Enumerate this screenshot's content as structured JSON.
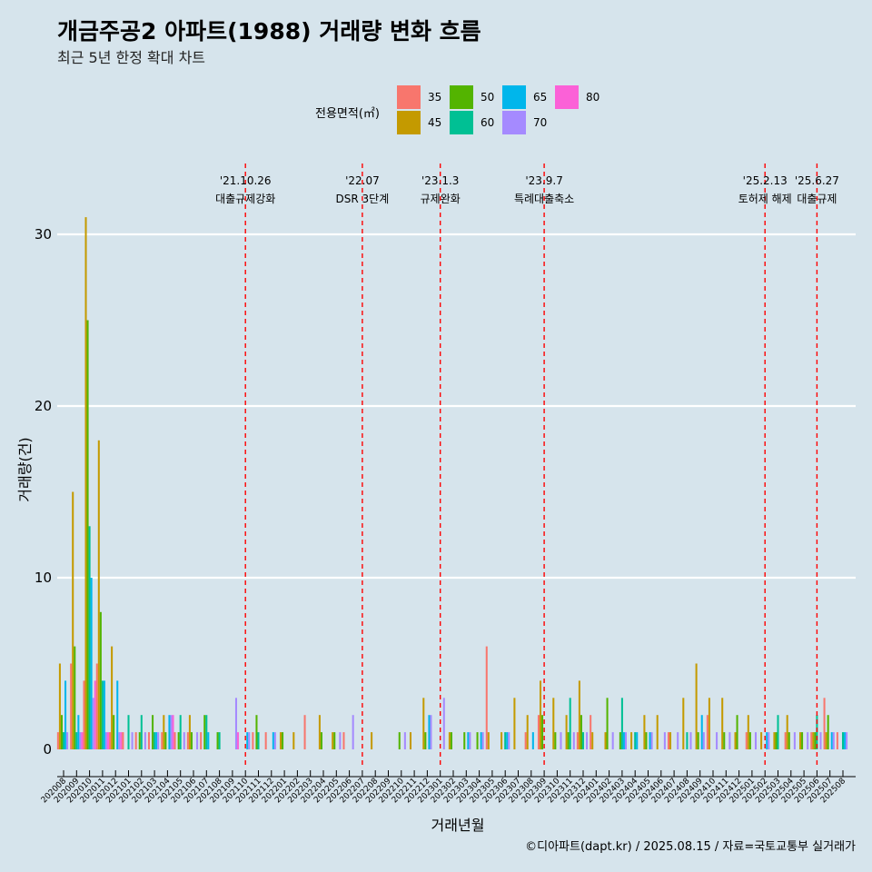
{
  "title": "개금주공2 아파트(1988) 거래량 변화 흐름",
  "subtitle": "최근 5년 한정 확대 차트",
  "caption": "©디아파트(dapt.kr) / 2025.08.15 / 자료=국토교통부 실거래가",
  "chart_data": {
    "type": "bar",
    "xlabel": "거래년월",
    "ylabel": "거래량(건)",
    "ylim": [
      0,
      32
    ],
    "yticks": [
      0,
      10,
      20,
      30
    ],
    "grid": "horizontal",
    "legend": {
      "title": "전용면적(㎡)",
      "position": "top",
      "entries": [
        {
          "name": "35",
          "color": "#f8766d"
        },
        {
          "name": "45",
          "color": "#c49a00"
        },
        {
          "name": "50",
          "color": "#53b400"
        },
        {
          "name": "60",
          "color": "#00c094"
        },
        {
          "name": "65",
          "color": "#00b6eb"
        },
        {
          "name": "70",
          "color": "#a58aff"
        },
        {
          "name": "80",
          "color": "#fb61d7"
        }
      ]
    },
    "months": [
      "202008",
      "202009",
      "202010",
      "202011",
      "202012",
      "202101",
      "202102",
      "202103",
      "202104",
      "202105",
      "202106",
      "202107",
      "202108",
      "202109",
      "202110",
      "202111",
      "202112",
      "202201",
      "202202",
      "202203",
      "202204",
      "202205",
      "202206",
      "202207",
      "202208",
      "202209",
      "202210",
      "202211",
      "202212",
      "202301",
      "202302",
      "202303",
      "202304",
      "202305",
      "202306",
      "202307",
      "202308",
      "202309",
      "202310",
      "202311",
      "202312",
      "202401",
      "202402",
      "202403",
      "202404",
      "202405",
      "202406",
      "202407",
      "202408",
      "202409",
      "202410",
      "202411",
      "202412",
      "202501",
      "202502",
      "202503",
      "202504",
      "202505",
      "202506",
      "202507",
      "202508"
    ],
    "data": [
      [
        1,
        5,
        2,
        1,
        4,
        1,
        0
      ],
      [
        5,
        15,
        6,
        1,
        2,
        1,
        1
      ],
      [
        4,
        31,
        25,
        13,
        10,
        3,
        4
      ],
      [
        5,
        18,
        8,
        4,
        4,
        1,
        1
      ],
      [
        1,
        6,
        2,
        0,
        4,
        1,
        1
      ],
      [
        1,
        0,
        0,
        2,
        0,
        1,
        0
      ],
      [
        1,
        0,
        1,
        2,
        0,
        1,
        0
      ],
      [
        1,
        0,
        2,
        1,
        1,
        1,
        0
      ],
      [
        1,
        2,
        1,
        0,
        2,
        2,
        2
      ],
      [
        1,
        0,
        1,
        2,
        0,
        1,
        0
      ],
      [
        1,
        2,
        1,
        0,
        0,
        1,
        0
      ],
      [
        1,
        0,
        2,
        2,
        1,
        0,
        0
      ],
      [
        0,
        0,
        1,
        1,
        0,
        0,
        0
      ],
      [
        0,
        0,
        0,
        0,
        0,
        3,
        1
      ],
      [
        0,
        0,
        0,
        0,
        1,
        1,
        0
      ],
      [
        1,
        0,
        2,
        1,
        0,
        0,
        0
      ],
      [
        1,
        0,
        0,
        0,
        1,
        1,
        0
      ],
      [
        0,
        1,
        1,
        0,
        0,
        0,
        0
      ],
      [
        0,
        1,
        0,
        0,
        0,
        0,
        0
      ],
      [
        2,
        0,
        0,
        0,
        0,
        0,
        0
      ],
      [
        0,
        2,
        1,
        0,
        0,
        0,
        0
      ],
      [
        0,
        1,
        1,
        0,
        0,
        1,
        0
      ],
      [
        1,
        0,
        0,
        0,
        0,
        2,
        0
      ],
      [
        0,
        0,
        0,
        0,
        0,
        0,
        0
      ],
      [
        0,
        1,
        0,
        0,
        0,
        0,
        0
      ],
      [
        0,
        0,
        0,
        0,
        0,
        0,
        0
      ],
      [
        0,
        0,
        1,
        0,
        0,
        1,
        0
      ],
      [
        0,
        1,
        0,
        0,
        0,
        0,
        0
      ],
      [
        0,
        3,
        1,
        0,
        2,
        2,
        0
      ],
      [
        0,
        0,
        0,
        0,
        0,
        3,
        0
      ],
      [
        0,
        1,
        1,
        0,
        0,
        0,
        0
      ],
      [
        0,
        0,
        1,
        0,
        1,
        1,
        0
      ],
      [
        0,
        0,
        1,
        0,
        1,
        1,
        0
      ],
      [
        6,
        1,
        0,
        0,
        0,
        0,
        0
      ],
      [
        0,
        1,
        0,
        1,
        1,
        1,
        0
      ],
      [
        0,
        3,
        0,
        0,
        0,
        0,
        0
      ],
      [
        1,
        2,
        0,
        0,
        1,
        0,
        0
      ],
      [
        2,
        4,
        2,
        0,
        0,
        0,
        0
      ],
      [
        0,
        3,
        1,
        0,
        0,
        1,
        0
      ],
      [
        0,
        2,
        1,
        3,
        0,
        1,
        0
      ],
      [
        1,
        4,
        2,
        1,
        0,
        1,
        0
      ],
      [
        2,
        1,
        0,
        0,
        0,
        0,
        0
      ],
      [
        0,
        1,
        3,
        0,
        0,
        1,
        0
      ],
      [
        0,
        0,
        1,
        3,
        1,
        1,
        0
      ],
      [
        0,
        1,
        0,
        1,
        1,
        0,
        0
      ],
      [
        0,
        2,
        1,
        0,
        1,
        1,
        0
      ],
      [
        0,
        2,
        0,
        0,
        0,
        1,
        0
      ],
      [
        1,
        1,
        0,
        0,
        0,
        1,
        0
      ],
      [
        0,
        3,
        0,
        1,
        0,
        1,
        0
      ],
      [
        0,
        5,
        1,
        0,
        2,
        1,
        0
      ],
      [
        2,
        3,
        0,
        0,
        0,
        1,
        0
      ],
      [
        0,
        3,
        1,
        0,
        0,
        1,
        0
      ],
      [
        0,
        1,
        2,
        0,
        0,
        0,
        0
      ],
      [
        1,
        2,
        1,
        0,
        0,
        1,
        0
      ],
      [
        0,
        1,
        0,
        0,
        1,
        1,
        0
      ],
      [
        0,
        1,
        1,
        2,
        0,
        0,
        0
      ],
      [
        1,
        2,
        1,
        0,
        0,
        1,
        0
      ],
      [
        0,
        1,
        1,
        0,
        0,
        1,
        0
      ],
      [
        1,
        1,
        1,
        2,
        0,
        1,
        0
      ],
      [
        3,
        1,
        2,
        0,
        1,
        1,
        0
      ],
      [
        1,
        0,
        0,
        1,
        1,
        1,
        0
      ]
    ],
    "events": [
      {
        "month": "202110",
        "date": "'21.10.26",
        "label": "대출규제강화"
      },
      {
        "month": "202207",
        "date": "'22.07",
        "label": "DSR 3단계"
      },
      {
        "month": "202301",
        "date": "'23.1.3",
        "label": "규제완화"
      },
      {
        "month": "202309",
        "date": "'23.9.7",
        "label": "특례대출축소"
      },
      {
        "month": "202502",
        "date": "'25.2.13",
        "label": "토허제 해제"
      },
      {
        "month": "202506",
        "date": "'25.6.27",
        "label": "대출규제"
      }
    ]
  }
}
